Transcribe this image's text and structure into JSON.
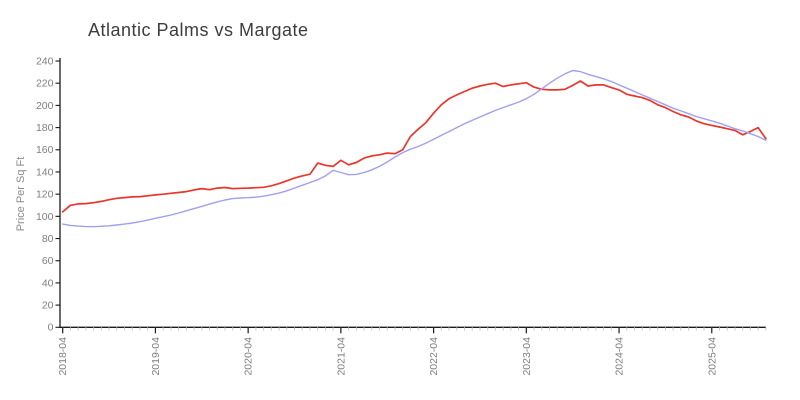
{
  "chart_data": {
    "type": "line",
    "title": "Atlantic Palms vs Margate",
    "xlabel": "",
    "ylabel": "Price Per Sq Ft",
    "x_interval": "monthly",
    "x_range": [
      "2018-04",
      "2025-11"
    ],
    "ylim": [
      0,
      240
    ],
    "grid": false,
    "legend": "none",
    "y_ticks": [
      0,
      20,
      40,
      60,
      80,
      100,
      120,
      140,
      160,
      180,
      200,
      220,
      240
    ],
    "x_tick_labels": [
      "2018-04",
      "2019-04",
      "2020-04",
      "2021-04",
      "2022-04",
      "2023-04",
      "2024-04",
      "2025-04"
    ],
    "x_tick_month_indices": [
      0,
      12,
      24,
      36,
      48,
      60,
      72,
      84
    ],
    "colors": {
      "axis": "#1a1a1a",
      "minor_tick": "#c6c6c6",
      "tick_label": "#7f7f7f",
      "title": "#3d3d3d"
    },
    "series": [
      {
        "name": "Atlantic Palms",
        "color": "#e8362b",
        "values": [
          104,
          110,
          111.2,
          111.5,
          112.3,
          113.5,
          115,
          116.3,
          116.9,
          117.5,
          117.8,
          118.5,
          119.3,
          120,
          120.8,
          121.5,
          122.3,
          123.8,
          125,
          124,
          125.5,
          126,
          125,
          125.3,
          125.5,
          125.8,
          126.2,
          127.5,
          129.5,
          132,
          134.5,
          136.5,
          138,
          148,
          146,
          145,
          150.5,
          146.5,
          148.5,
          152.5,
          154.5,
          155.5,
          157,
          156.5,
          160,
          172,
          178.5,
          184.5,
          193,
          200.5,
          206,
          209.5,
          212.5,
          215.5,
          217.5,
          219,
          220,
          217,
          218.5,
          219.5,
          220.5,
          216.5,
          214.5,
          214,
          214,
          214.5,
          218,
          222,
          217.5,
          218.5,
          218.5,
          216,
          214,
          210,
          208.5,
          207,
          204.5,
          200.5,
          198,
          194.5,
          191.5,
          189.5,
          186,
          183.5,
          182,
          180.5,
          179,
          177.5,
          173.5,
          176.5,
          180,
          170
        ]
      },
      {
        "name": "Margate",
        "color": "#a0a0f0",
        "values": [
          93,
          91.8,
          91.2,
          90.8,
          90.7,
          91,
          91.5,
          92.2,
          93,
          94,
          95.2,
          96.6,
          98.2,
          99.7,
          101.2,
          103,
          105,
          107,
          109,
          111,
          113,
          114.7,
          116,
          116.5,
          116.8,
          117.3,
          118.2,
          119.5,
          121,
          123,
          125.5,
          128,
          130.5,
          133,
          136.5,
          141.5,
          139.5,
          137.5,
          137.8,
          139.5,
          142,
          145,
          149,
          153.5,
          157.5,
          160.5,
          163,
          166,
          169.5,
          173,
          176.5,
          180,
          183.5,
          186.5,
          189.5,
          192.5,
          195.5,
          198,
          200.5,
          203,
          206,
          210,
          215,
          220,
          224.5,
          228.5,
          231.5,
          230.5,
          228,
          226,
          224,
          221.5,
          218.5,
          215.5,
          212.5,
          209.5,
          206.5,
          203.5,
          200.5,
          197.5,
          195,
          192.5,
          190,
          188,
          186,
          184,
          181.5,
          179,
          177,
          174.5,
          172,
          168.5
        ]
      }
    ]
  }
}
